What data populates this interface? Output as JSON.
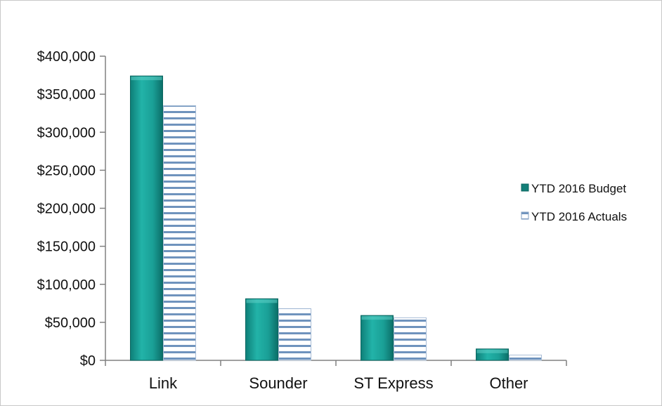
{
  "chart_data": {
    "type": "bar",
    "categories": [
      "Link",
      "Sounder",
      "ST Express",
      "Other"
    ],
    "series": [
      {
        "name": "YTD 2016 Budget",
        "values": [
          374000,
          81000,
          59000,
          15000
        ],
        "color": "#1aa49a"
      },
      {
        "name": "YTD 2016 Actuals",
        "values": [
          335000,
          68000,
          56000,
          7000
        ],
        "color": "#7f9ec1"
      }
    ],
    "ylim": [
      0,
      400000
    ],
    "yticks": [
      "$0",
      "$50,000",
      "$100,000",
      "$150,000",
      "$200,000",
      "$250,000",
      "$300,000",
      "$350,000",
      "$400,000"
    ],
    "ytick_values": [
      0,
      50000,
      100000,
      150000,
      200000,
      250000,
      300000,
      350000,
      400000
    ],
    "grid": false,
    "legend_position": "right"
  }
}
